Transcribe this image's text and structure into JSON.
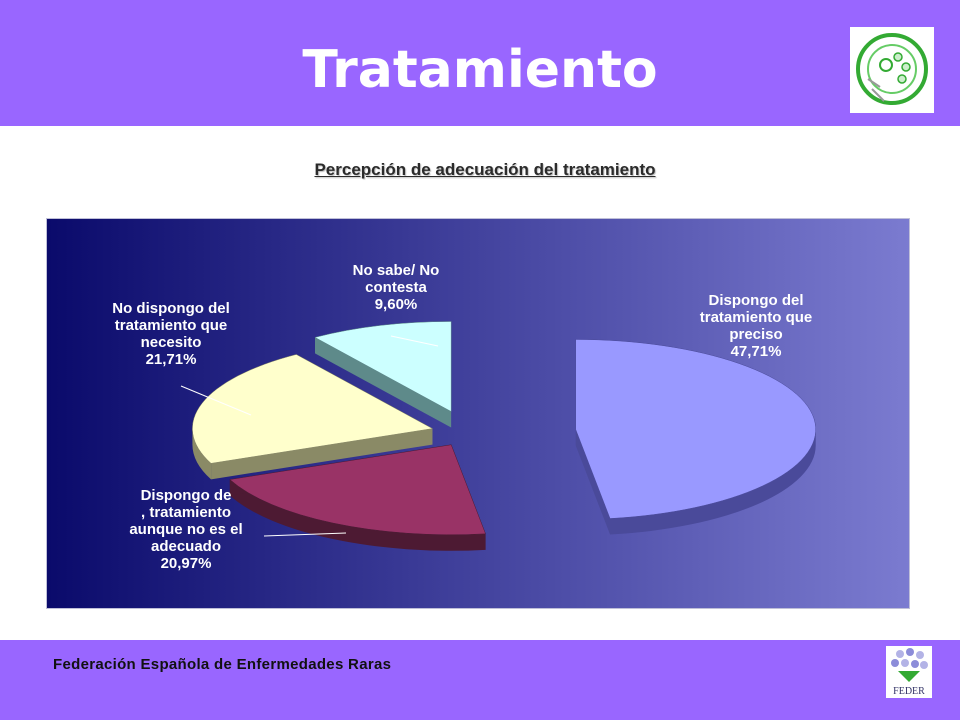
{
  "header": {
    "title": "Tratamiento"
  },
  "footer": {
    "organization": "Federación Española de Enfermedades Raras"
  },
  "logos": {
    "top_icon": "enfermedades-raras-seal-icon",
    "bottom_icon": "feder-logo-icon",
    "bottom_text": "FEDER"
  },
  "colors": {
    "banner": "#9966ff",
    "plot_left": "#0a0a6b",
    "plot_right": "#7b7bd0"
  },
  "chart_data": {
    "type": "pie",
    "title": "Percepción de adecuación del tratamiento",
    "style": "3d-exploded",
    "unit": "%",
    "slices": [
      {
        "label": [
          "Dispongo del",
          "tratamiento que",
          "preciso"
        ],
        "value_label": "47,71%",
        "value": 47.71,
        "color": "#9999ff",
        "side_color": "#4a4a9a"
      },
      {
        "label": [
          "Dispongo de",
          ", tratamiento",
          "aunque no es el",
          "adecuado"
        ],
        "value_label": "20,97%",
        "value": 20.97,
        "color": "#993366",
        "side_color": "#4d1a33"
      },
      {
        "label": [
          "No dispongo del",
          "tratamiento que",
          "necesito"
        ],
        "value_label": "21,71%",
        "value": 21.71,
        "color": "#ffffcc",
        "side_color": "#8a8a66"
      },
      {
        "label": [
          "No sabe/ No",
          "contesta"
        ],
        "value_label": "9,60%",
        "value": 9.6,
        "color": "#ccffff",
        "side_color": "#5e8a8a"
      }
    ]
  }
}
